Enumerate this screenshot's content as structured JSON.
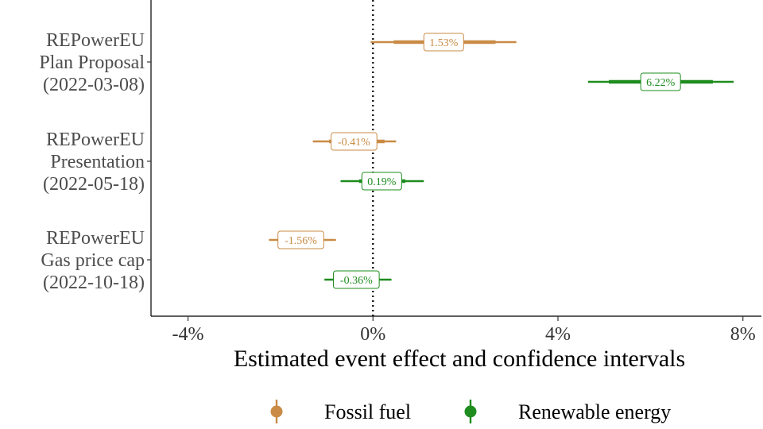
{
  "chart_data": {
    "type": "forest",
    "title": "",
    "xlabel": "Estimated event effect and confidence intervals",
    "ylabel": "",
    "xlim": [
      -4.8,
      8.4
    ],
    "xticks": [
      -4,
      0,
      4,
      8
    ],
    "xtick_labels": [
      "-4%",
      "0%",
      "4%",
      "8%"
    ],
    "reference_line": {
      "x": 0,
      "style": "dotted"
    },
    "grid": false,
    "legend_position": "bottom",
    "categories": [
      {
        "lines": [
          "REPowerEU",
          "Plan Proposal",
          "(2022-03-08)"
        ]
      },
      {
        "lines": [
          "REPowerEU",
          "Presentation",
          "(2022-05-18)"
        ]
      },
      {
        "lines": [
          "REPowerEU",
          "Gas price cap",
          "(2022-10-18)"
        ]
      }
    ],
    "series": [
      {
        "name": "Fossil fuel",
        "color": "#C98B45",
        "points": [
          {
            "event": 0,
            "estimate": 1.53,
            "label": "1.53%",
            "ci_inner": [
              0.45,
              2.65
            ],
            "ci_outer": [
              -0.05,
              3.1
            ]
          },
          {
            "event": 1,
            "estimate": -0.41,
            "label": "-0.41%",
            "ci_inner": [
              -0.95,
              0.25
            ],
            "ci_outer": [
              -1.3,
              0.5
            ]
          },
          {
            "event": 2,
            "estimate": -1.56,
            "label": "-1.56%",
            "ci_inner": [
              -2.0,
              -1.1
            ],
            "ci_outer": [
              -2.25,
              -0.8
            ]
          }
        ]
      },
      {
        "name": "Renewable energy",
        "color": "#1E8C1E",
        "points": [
          {
            "event": 0,
            "estimate": 6.22,
            "label": "6.22%",
            "ci_inner": [
              5.1,
              7.35
            ],
            "ci_outer": [
              4.65,
              7.8
            ]
          },
          {
            "event": 1,
            "estimate": 0.19,
            "label": "0.19%",
            "ci_inner": [
              -0.3,
              0.7
            ],
            "ci_outer": [
              -0.7,
              1.1
            ]
          },
          {
            "event": 2,
            "estimate": -0.36,
            "label": "-0.36%",
            "ci_inner": [
              -0.75,
              0.05
            ],
            "ci_outer": [
              -1.05,
              0.4
            ]
          }
        ]
      }
    ]
  }
}
